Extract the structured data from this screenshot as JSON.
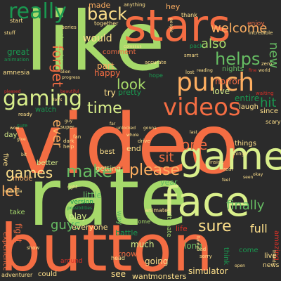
{
  "background": "#2b2b2b",
  "palette": {
    "g": "#1a9850",
    "c": "#fdae61",
    "y": "#d9ef8b",
    "l": "#a6d96a",
    "r": "#f46d43",
    "s": "#66bd63",
    "o": "#fee08b",
    "d": "#d73027"
  },
  "words": [
    {
      "text": "video",
      "color": "r"
    },
    {
      "text": "rate",
      "color": "l"
    },
    {
      "text": "button",
      "color": "r"
    },
    {
      "text": "like",
      "color": "l"
    },
    {
      "text": "stars",
      "color": "r"
    },
    {
      "text": "face",
      "color": "y"
    },
    {
      "text": "game",
      "color": "y"
    },
    {
      "text": "punch",
      "color": "c"
    },
    {
      "text": "videos",
      "color": "r"
    },
    {
      "text": "really",
      "color": "g"
    },
    {
      "text": "gaming",
      "color": "y"
    },
    {
      "text": "back",
      "color": "o"
    },
    {
      "text": "helps",
      "color": "s"
    },
    {
      "text": "time",
      "color": "y"
    },
    {
      "text": "make",
      "color": "s"
    },
    {
      "text": "please",
      "color": "c"
    },
    {
      "text": "one",
      "color": "r"
    },
    {
      "text": "sure",
      "color": "o"
    },
    {
      "text": "finally",
      "color": "s"
    },
    {
      "text": "let",
      "color": "c"
    },
    {
      "text": "games",
      "color": "o"
    },
    {
      "text": "guys",
      "color": "s"
    },
    {
      "text": "also",
      "color": "l"
    },
    {
      "text": "welcome",
      "color": "c"
    },
    {
      "text": "new",
      "color": "s"
    },
    {
      "text": "hit",
      "color": "g"
    },
    {
      "text": "forget",
      "color": "r"
    },
    {
      "text": "ever",
      "color": "c"
    },
    {
      "text": "look",
      "color": "l"
    },
    {
      "text": "would",
      "color": "o"
    },
    {
      "text": "full",
      "color": "o"
    },
    {
      "text": "everyone",
      "color": "o"
    },
    {
      "text": "sit",
      "color": "r"
    },
    {
      "text": "great",
      "color": "g"
    },
    {
      "text": "made",
      "color": "c"
    },
    {
      "text": "horror",
      "color": "r"
    },
    {
      "text": "hey",
      "color": "c"
    },
    {
      "text": "part",
      "color": "c"
    },
    {
      "text": "happy",
      "color": "r"
    },
    {
      "text": "things",
      "color": "o"
    },
    {
      "text": "end",
      "color": "o"
    },
    {
      "text": "try",
      "color": "o"
    },
    {
      "text": "day",
      "color": "y"
    },
    {
      "text": "little",
      "color": "s"
    },
    {
      "text": "play",
      "color": "y"
    },
    {
      "text": "love",
      "color": "y"
    },
    {
      "text": "year",
      "color": "s"
    },
    {
      "text": "simulator",
      "color": "o"
    },
    {
      "text": "long",
      "color": "s"
    },
    {
      "text": "much",
      "color": "y"
    },
    {
      "text": "going",
      "color": "o"
    },
    {
      "text": "see",
      "color": "o"
    },
    {
      "text": "want",
      "color": "o"
    },
    {
      "text": "monsters",
      "color": "o"
    },
    {
      "text": "battle",
      "color": "g"
    },
    {
      "text": "life",
      "color": "d"
    },
    {
      "text": "best",
      "color": "o"
    },
    {
      "text": "five",
      "color": "o"
    },
    {
      "text": "take",
      "color": "l"
    },
    {
      "text": "fight",
      "color": "r"
    },
    {
      "text": "experience",
      "color": "r"
    },
    {
      "text": "know",
      "color": "r"
    },
    {
      "text": "way",
      "color": "s"
    },
    {
      "text": "laugh",
      "color": "o"
    },
    {
      "text": "since",
      "color": "o"
    },
    {
      "text": "entire",
      "color": "g"
    },
    {
      "text": "getting",
      "color": "y"
    },
    {
      "text": "better",
      "color": "y"
    },
    {
      "text": "mode",
      "color": "c"
    },
    {
      "text": "start",
      "color": "o"
    },
    {
      "text": "amnesia",
      "color": "o"
    },
    {
      "text": "comment",
      "color": "r"
    },
    {
      "text": "nights",
      "color": "s"
    },
    {
      "text": "thought",
      "color": "l"
    },
    {
      "text": "pretty",
      "color": "g"
    },
    {
      "text": "watch",
      "color": "g"
    },
    {
      "text": "ultimate",
      "color": "l"
    },
    {
      "text": "become",
      "color": "l"
    },
    {
      "text": "animated",
      "color": "o"
    },
    {
      "text": "version",
      "color": "g"
    },
    {
      "text": "amazing",
      "color": "d"
    },
    {
      "text": "live",
      "color": "o"
    },
    {
      "text": "news",
      "color": "o"
    },
    {
      "text": "come",
      "color": "g"
    },
    {
      "text": "think",
      "color": "g"
    },
    {
      "text": "could",
      "color": "o"
    },
    {
      "text": "adventurer",
      "color": "o"
    },
    {
      "text": "around",
      "color": "d"
    },
    {
      "text": "show",
      "color": "o"
    },
    {
      "text": "bad",
      "color": "o"
    },
    {
      "text": "sorry",
      "color": "o"
    },
    {
      "text": "head",
      "color": "o"
    },
    {
      "text": "together",
      "color": "o"
    },
    {
      "text": "hope",
      "color": "g"
    },
    {
      "text": "smart",
      "color": "o"
    },
    {
      "text": "zero",
      "color": "o"
    },
    {
      "text": "enjoy",
      "color": "r"
    },
    {
      "text": "incredible",
      "color": "o"
    },
    {
      "text": "thank",
      "color": "o"
    },
    {
      "text": "anything",
      "color": "o"
    },
    {
      "text": "waiting",
      "color": "d"
    },
    {
      "text": "scary",
      "color": "o"
    },
    {
      "text": "things",
      "color": "o"
    },
    {
      "text": "inside",
      "color": "o"
    },
    {
      "text": "real",
      "color": "o"
    },
    {
      "text": "animation",
      "color": "g"
    },
    {
      "text": "series",
      "color": "o"
    },
    {
      "text": "fan",
      "color": "o"
    },
    {
      "text": "super",
      "color": "o"
    },
    {
      "text": "ready",
      "color": "o"
    },
    {
      "text": "help",
      "color": "o"
    },
    {
      "text": "dark",
      "color": "o"
    },
    {
      "text": "drive",
      "color": "o"
    },
    {
      "text": "sure",
      "color": "g"
    },
    {
      "text": "friends",
      "color": "o"
    },
    {
      "text": "accurate",
      "color": "o"
    },
    {
      "text": "stuff",
      "color": "o"
    },
    {
      "text": "lost",
      "color": "o"
    },
    {
      "text": "reading",
      "color": "o"
    },
    {
      "text": "world",
      "color": "o"
    },
    {
      "text": "colossus",
      "color": "o"
    },
    {
      "text": "alien",
      "color": "o"
    },
    {
      "text": "beautiful",
      "color": "d"
    },
    {
      "text": "nostalgia",
      "color": "o"
    },
    {
      "text": "possibilities",
      "color": "g"
    },
    {
      "text": "unlocked",
      "color": "o"
    },
    {
      "text": "far",
      "color": "o"
    },
    {
      "text": "whole",
      "color": "o"
    },
    {
      "text": "give",
      "color": "o"
    },
    {
      "text": "bit",
      "color": "o"
    },
    {
      "text": "hug",
      "color": "o"
    },
    {
      "text": "okay",
      "color": "o"
    },
    {
      "text": "fine",
      "color": "d"
    },
    {
      "text": "funny",
      "color": "o"
    },
    {
      "text": "seen",
      "color": "o"
    },
    {
      "text": "feel",
      "color": "o"
    },
    {
      "text": "pleased",
      "color": "d"
    },
    {
      "text": "progress",
      "color": "o"
    },
    {
      "text": "open",
      "color": "o"
    },
    {
      "text": "people",
      "color": "o"
    },
    {
      "text": "last",
      "color": "o"
    },
    {
      "text": "wow",
      "color": "o"
    },
    {
      "text": "right",
      "color": "o"
    },
    {
      "text": "gonna",
      "color": "o"
    },
    {
      "text": "guy",
      "color": "o"
    },
    {
      "text": "pack",
      "color": "g"
    },
    {
      "text": "let's",
      "color": "o"
    }
  ]
}
